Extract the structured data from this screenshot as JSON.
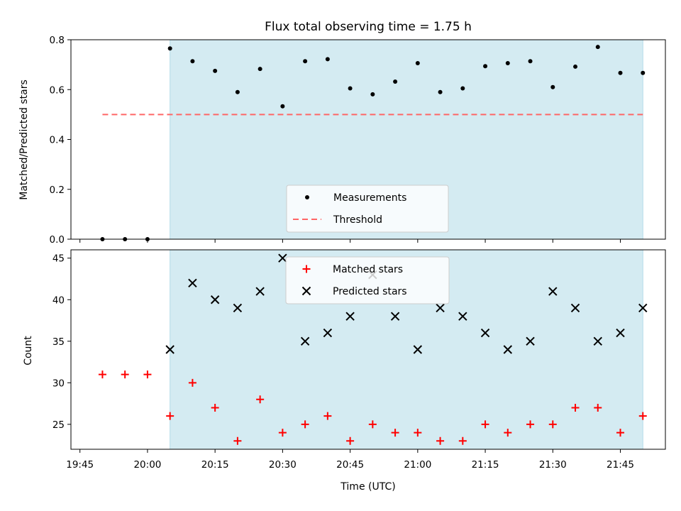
{
  "chart_data": [
    {
      "type": "scatter",
      "title": "Flux total observing time = 1.75 h",
      "xlabel": "",
      "ylabel": "Matched/Predicted stars",
      "ylim": [
        0,
        0.8
      ],
      "yticks": [
        "0.0",
        "0.2",
        "0.4",
        "0.6",
        "0.8"
      ],
      "legend": "lower center",
      "shaded_interval": [
        "20:05",
        "21:50"
      ],
      "shade_color": "#add8e6",
      "series": [
        {
          "name": "Measurements",
          "marker": "dot",
          "color": "#000000",
          "x": [
            "19:50",
            "19:55",
            "20:00",
            "20:05",
            "20:10",
            "20:15",
            "20:20",
            "20:25",
            "20:30",
            "20:35",
            "20:40",
            "20:45",
            "20:50",
            "20:55",
            "21:00",
            "21:05",
            "21:10",
            "21:15",
            "21:20",
            "21:25",
            "21:30",
            "21:35",
            "21:40",
            "21:45",
            "21:50"
          ],
          "y": [
            0.0,
            0.0,
            0.0,
            0.765,
            0.714,
            0.675,
            0.59,
            0.683,
            0.533,
            0.714,
            0.722,
            0.605,
            0.581,
            0.632,
            0.706,
            0.59,
            0.605,
            0.694,
            0.706,
            0.714,
            0.61,
            0.692,
            0.771,
            0.667,
            0.667
          ]
        },
        {
          "name": "Threshold",
          "style": "dashed",
          "color": "#ff6666",
          "x": [
            "19:50",
            "21:50"
          ],
          "y": [
            0.5,
            0.5
          ]
        }
      ]
    },
    {
      "type": "scatter",
      "xlabel": "Time (UTC)",
      "ylabel": "Count",
      "ylim": [
        22,
        46
      ],
      "yticks": [
        "25",
        "30",
        "35",
        "40",
        "45"
      ],
      "xticks": [
        "19:45",
        "20:00",
        "20:15",
        "20:30",
        "20:45",
        "21:00",
        "21:15",
        "21:30",
        "21:45"
      ],
      "legend": "upper center",
      "shaded_interval": [
        "20:05",
        "21:50"
      ],
      "shade_color": "#add8e6",
      "series": [
        {
          "name": "Matched stars",
          "marker": "plus",
          "color": "#ff0000",
          "x": [
            "19:50",
            "19:55",
            "20:00",
            "20:05",
            "20:10",
            "20:15",
            "20:20",
            "20:25",
            "20:30",
            "20:35",
            "20:40",
            "20:45",
            "20:50",
            "20:55",
            "21:00",
            "21:05",
            "21:10",
            "21:15",
            "21:20",
            "21:25",
            "21:30",
            "21:35",
            "21:40",
            "21:45",
            "21:50"
          ],
          "y": [
            31,
            31,
            31,
            26,
            30,
            27,
            23,
            28,
            24,
            25,
            26,
            23,
            25,
            24,
            24,
            23,
            23,
            25,
            24,
            25,
            25,
            27,
            27,
            24,
            26
          ]
        },
        {
          "name": "Predicted stars",
          "marker": "x",
          "color": "#000000",
          "x": [
            "19:50",
            "19:55",
            "20:00",
            "20:05",
            "20:10",
            "20:15",
            "20:20",
            "20:25",
            "20:30",
            "20:35",
            "20:40",
            "20:45",
            "20:50",
            "20:55",
            "21:00",
            "21:05",
            "21:10",
            "21:15",
            "21:20",
            "21:25",
            "21:30",
            "21:35",
            "21:40",
            "21:45",
            "21:50"
          ],
          "y": [
            null,
            null,
            null,
            34,
            42,
            40,
            39,
            41,
            45,
            35,
            36,
            38,
            43,
            38,
            34,
            39,
            38,
            36,
            34,
            35,
            41,
            39,
            35,
            36,
            39
          ]
        }
      ]
    }
  ]
}
